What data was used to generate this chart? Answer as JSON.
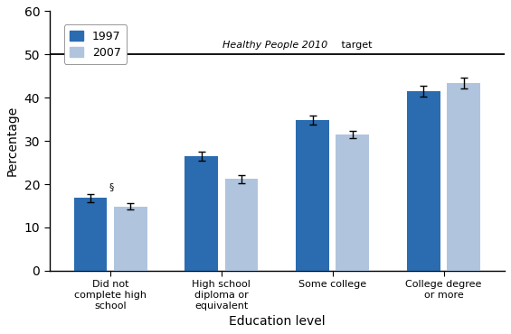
{
  "categories": [
    "Did not\ncomplete high\nschool",
    "High school\ndiploma or\nequivalent",
    "Some college",
    "College degree\nor more"
  ],
  "values_1997": [
    16.8,
    26.5,
    34.8,
    41.5
  ],
  "values_2007": [
    14.9,
    21.2,
    31.5,
    43.4
  ],
  "errors_1997": [
    1.0,
    1.0,
    1.1,
    1.2
  ],
  "errors_2007": [
    0.8,
    1.0,
    0.8,
    1.2
  ],
  "color_1997": "#2b6cb0",
  "color_2007": "#b0c4de",
  "target_line": 50,
  "ylabel": "Percentage",
  "xlabel": "Education level",
  "ylim": [
    0,
    60
  ],
  "yticks": [
    0,
    10,
    20,
    30,
    40,
    50,
    60
  ],
  "legend_labels": [
    "1997",
    "2007"
  ],
  "section_symbol": "§",
  "background_color": "#ffffff"
}
